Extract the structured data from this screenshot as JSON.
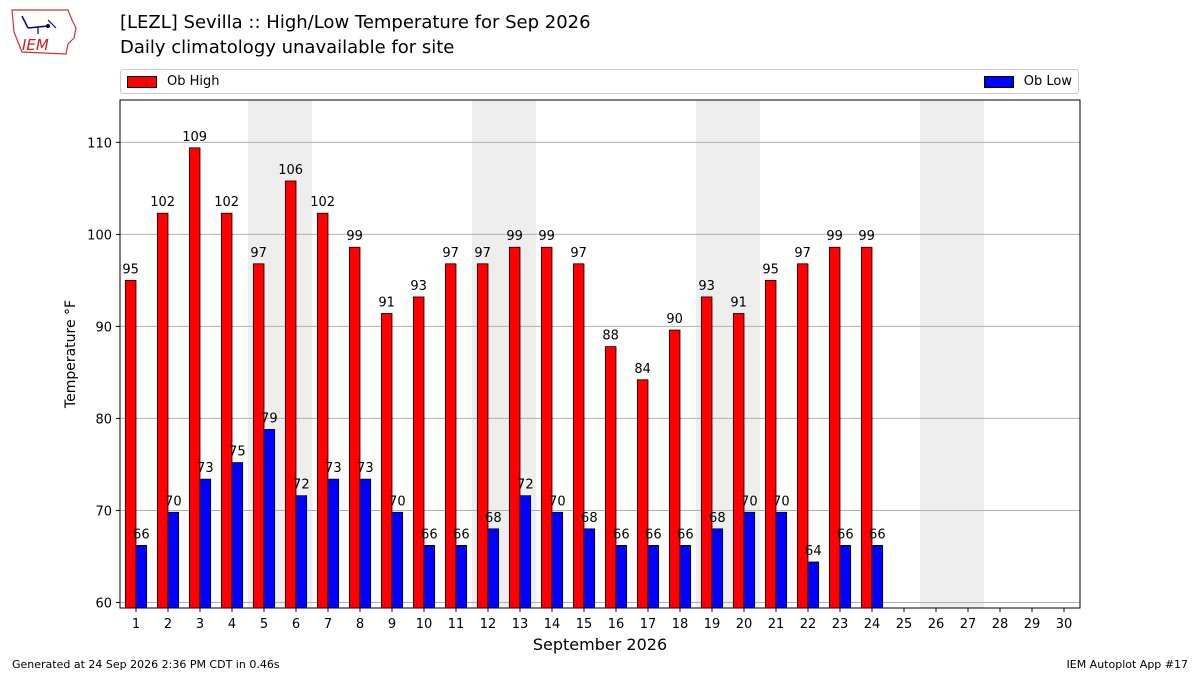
{
  "header": {
    "logo_text": "IEM",
    "title_line1": "[LEZL] Sevilla :: High/Low Temperature for Sep 2026",
    "title_line2": "Daily climatology unavailable for site"
  },
  "footer": {
    "generated": "Generated at 24 Sep 2026 2:36 PM CDT in 0.46s",
    "app": "IEM Autoplot App #17"
  },
  "colors": {
    "high": "#ff0000",
    "low": "#0000ff",
    "weekend_shade": "#eeeeee",
    "grid": "#b0b0b0"
  },
  "chart_data": {
    "type": "bar",
    "xlabel": "September 2026",
    "ylabel": "Temperature °F",
    "ylim": [
      59.4,
      114.6
    ],
    "yticks": [
      60,
      70,
      80,
      90,
      100,
      110
    ],
    "grid": true,
    "legend_placement": "top",
    "categories": [
      "1",
      "2",
      "3",
      "4",
      "5",
      "6",
      "7",
      "8",
      "9",
      "10",
      "11",
      "12",
      "13",
      "14",
      "15",
      "16",
      "17",
      "18",
      "19",
      "20",
      "21",
      "22",
      "23",
      "24",
      "25",
      "26",
      "27",
      "28",
      "29",
      "30"
    ],
    "shaded_days": [
      5,
      6,
      12,
      13,
      19,
      20,
      26,
      27
    ],
    "series": [
      {
        "name": "Ob High",
        "values": [
          95.0,
          102.3,
          109.4,
          102.3,
          96.8,
          105.8,
          102.3,
          98.6,
          91.4,
          93.2,
          96.8,
          96.8,
          98.6,
          98.6,
          96.8,
          87.8,
          84.2,
          89.6,
          93.2,
          91.4,
          95.0,
          96.8,
          98.6,
          98.6,
          null,
          null,
          null,
          null,
          null,
          null
        ],
        "labels": [
          "95",
          "102",
          "109",
          "102",
          "97",
          "106",
          "102",
          "99",
          "91",
          "93",
          "97",
          "97",
          "99",
          "99",
          "97",
          "88",
          "84",
          "90",
          "93",
          "91",
          "95",
          "97",
          "99",
          "99",
          "",
          "",
          "",
          "",
          "",
          ""
        ]
      },
      {
        "name": "Ob Low",
        "values": [
          66.2,
          69.8,
          73.4,
          75.2,
          78.8,
          71.6,
          73.4,
          73.4,
          69.8,
          66.2,
          66.2,
          68.0,
          71.6,
          69.8,
          68.0,
          66.2,
          66.2,
          66.2,
          68.0,
          69.8,
          69.8,
          64.4,
          66.2,
          66.2,
          null,
          null,
          null,
          null,
          null,
          null
        ],
        "labels": [
          "66",
          "70",
          "73",
          "75",
          "79",
          "72",
          "73",
          "73",
          "70",
          "66",
          "66",
          "68",
          "72",
          "70",
          "68",
          "66",
          "66",
          "66",
          "68",
          "70",
          "70",
          "64",
          "66",
          "66",
          "",
          "",
          "",
          "",
          "",
          ""
        ]
      }
    ]
  }
}
